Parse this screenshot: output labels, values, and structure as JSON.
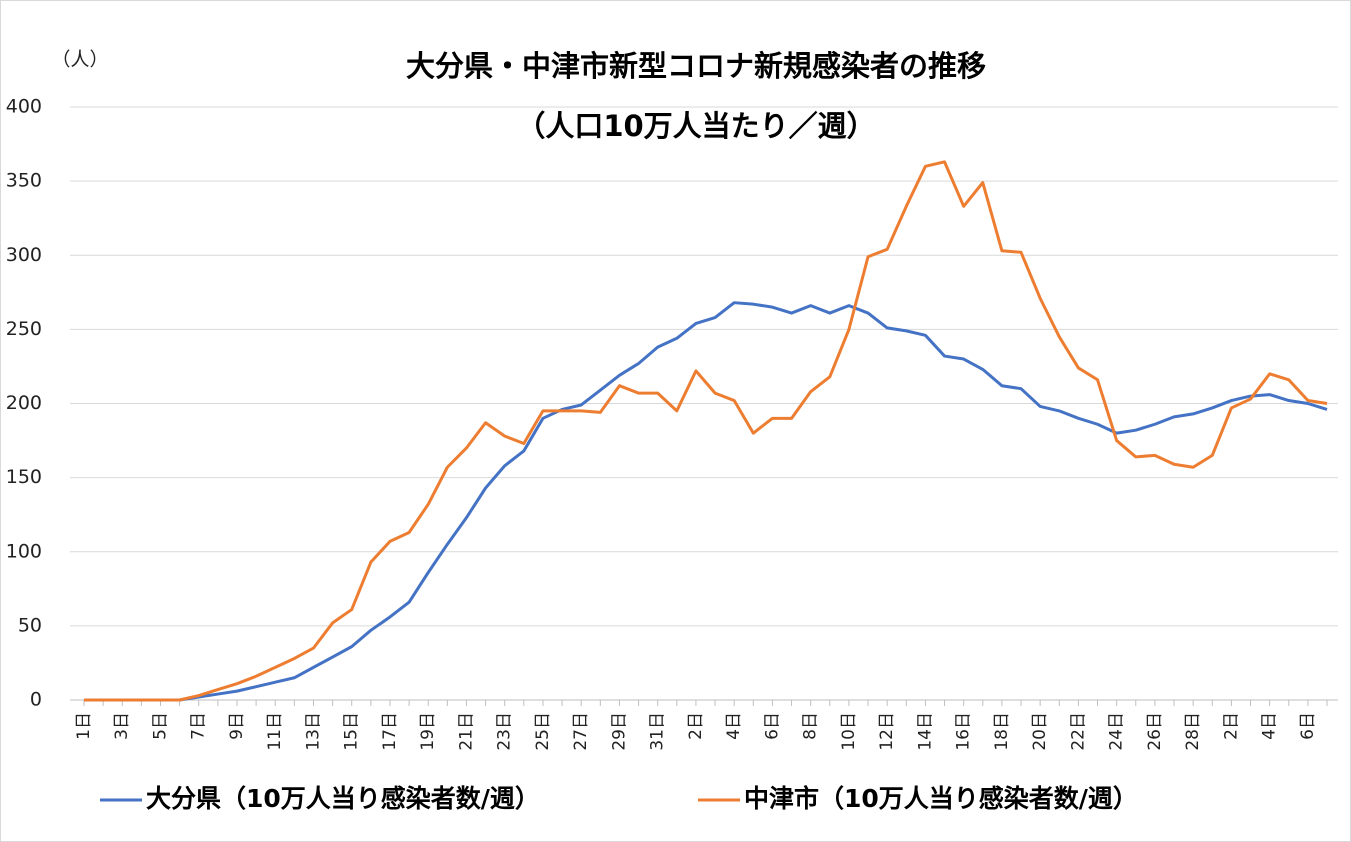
{
  "chart_data": {
    "type": "line",
    "title": "大分県・中津市新型コロナ新規感染者の推移",
    "subtitle": "（人口10万人当たり／週）",
    "y_axis_label": "（人）",
    "categories": [
      "1日",
      null,
      "3日",
      null,
      "5日",
      null,
      "7日",
      null,
      "9日",
      null,
      "11日",
      null,
      "13日",
      null,
      "15日",
      null,
      "17日",
      null,
      "19日",
      null,
      "21日",
      null,
      "23日",
      null,
      "25日",
      null,
      "27日",
      null,
      "29日",
      null,
      "31日",
      null,
      "2日",
      null,
      "4日",
      null,
      "6日",
      null,
      "8日",
      null,
      "10日",
      null,
      "12日",
      null,
      "14日",
      null,
      "16日",
      null,
      "18日",
      null,
      "20日",
      null,
      "22日",
      null,
      "24日",
      null,
      "26日",
      null,
      "28日",
      null,
      "2日",
      null,
      "4日",
      null,
      "6日",
      null
    ],
    "series": [
      {
        "name": "大分県（10万人当り感染者数/週）",
        "color": "#4472c4",
        "values": [
          0,
          0,
          0,
          0,
          0,
          0,
          2,
          4,
          6,
          9,
          12,
          15,
          22,
          29,
          36,
          47,
          56,
          66,
          86,
          105,
          123,
          143,
          158,
          168,
          190,
          196,
          199,
          209,
          219,
          227,
          238,
          244,
          254,
          258,
          268,
          267,
          265,
          261,
          266,
          261,
          266,
          261,
          251,
          249,
          246,
          232,
          230,
          223,
          212,
          210,
          198,
          195,
          190,
          186,
          180,
          182,
          186,
          191,
          193,
          197,
          202,
          205,
          206,
          202,
          200,
          196
        ]
      },
      {
        "name": "中津市（10万人当り感染者数/週）",
        "color": "#ed7d31",
        "values": [
          0,
          0,
          0,
          0,
          0,
          0,
          3,
          7,
          11,
          16,
          22,
          28,
          35,
          52,
          61,
          93,
          107,
          113,
          132,
          157,
          170,
          187,
          178,
          173,
          195,
          195,
          195,
          194,
          212,
          207,
          207,
          195,
          222,
          207,
          202,
          180,
          190,
          190,
          208,
          218,
          250,
          299,
          304,
          333,
          360,
          363,
          333,
          349,
          303,
          302,
          271,
          245,
          224,
          216,
          175,
          164,
          165,
          159,
          157,
          165,
          197,
          203,
          220,
          216,
          202,
          200
        ]
      }
    ],
    "ylim": [
      0,
      400
    ],
    "yticks": [
      0,
      50,
      100,
      150,
      200,
      250,
      300,
      350,
      400
    ],
    "grid": true,
    "legend": "bottom"
  }
}
